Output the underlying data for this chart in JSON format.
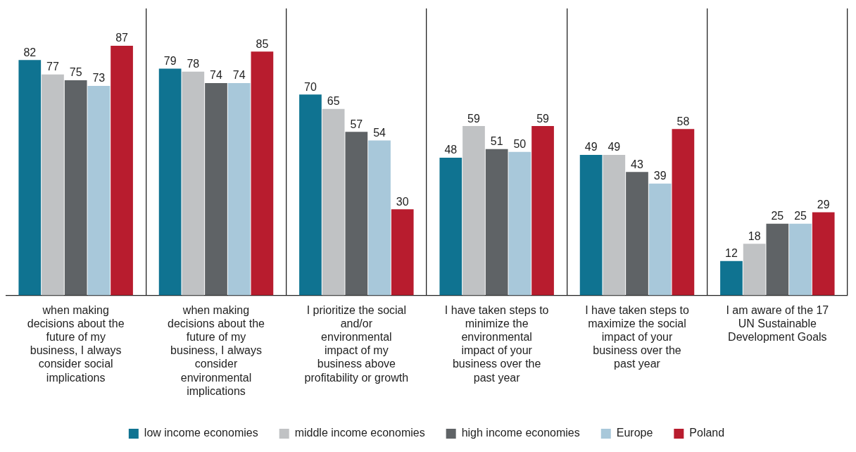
{
  "chart_data": {
    "type": "bar",
    "categories": [
      "when making decisions about the future of my business, I always consider social implications",
      "when making decisions about the future of my business, I always consider environmental implications",
      "I prioritize the social and/or environmental impact of my business above profitability or growth",
      "I have taken steps to minimize the environmental impact of your business over the past year",
      "I have taken steps to maximize the social impact of your business over the past year",
      "I am aware of the 17 UN Sustainable Development Goals"
    ],
    "series": [
      {
        "name": "low income economies",
        "color": "#0f7391",
        "values": [
          82,
          79,
          70,
          48,
          49,
          12
        ]
      },
      {
        "name": "middle income economies",
        "color": "#c0c2c4",
        "values": [
          77,
          78,
          65,
          59,
          49,
          18
        ]
      },
      {
        "name": "high income economies",
        "color": "#5f6366",
        "values": [
          75,
          74,
          57,
          51,
          43,
          25
        ]
      },
      {
        "name": "Europe",
        "color": "#a8c8da",
        "values": [
          73,
          74,
          54,
          50,
          39,
          25
        ]
      },
      {
        "name": "Poland",
        "color": "#b81c2e",
        "values": [
          87,
          85,
          30,
          59,
          58,
          29
        ]
      }
    ],
    "data_labels": true,
    "grid": "x",
    "legend": "bottom"
  }
}
